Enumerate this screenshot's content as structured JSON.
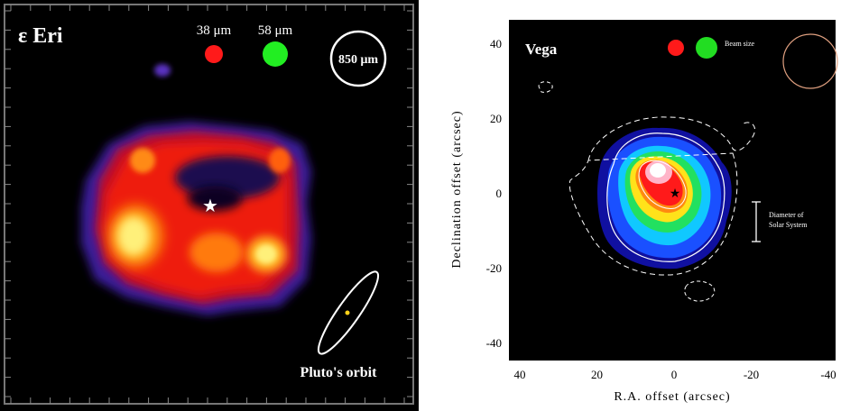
{
  "left_panel": {
    "title": "ε Eri",
    "beam_labels": [
      "38 μm",
      "58 μm"
    ],
    "beam_colors": [
      "#ff1a1a",
      "#22ee22"
    ],
    "circle_label": "850 μm",
    "orbit_label": "Pluto's orbit",
    "star_symbol": "★"
  },
  "right_panel": {
    "title": "Vega",
    "beam_label": "Beam size",
    "beam_colors": [
      "#ff1a1a",
      "#22dd22"
    ],
    "scale_bar_label": [
      "Diameter of",
      "Solar System"
    ],
    "ylabel": "Declination offset (arcsec)",
    "xlabel": "R.A. offset (arcsec)",
    "x_ticks": [
      "40",
      "20",
      "0",
      "-20",
      "-40"
    ],
    "y_ticks": [
      "40",
      "20",
      "0",
      "-20",
      "-40"
    ],
    "star_symbol": "★"
  }
}
